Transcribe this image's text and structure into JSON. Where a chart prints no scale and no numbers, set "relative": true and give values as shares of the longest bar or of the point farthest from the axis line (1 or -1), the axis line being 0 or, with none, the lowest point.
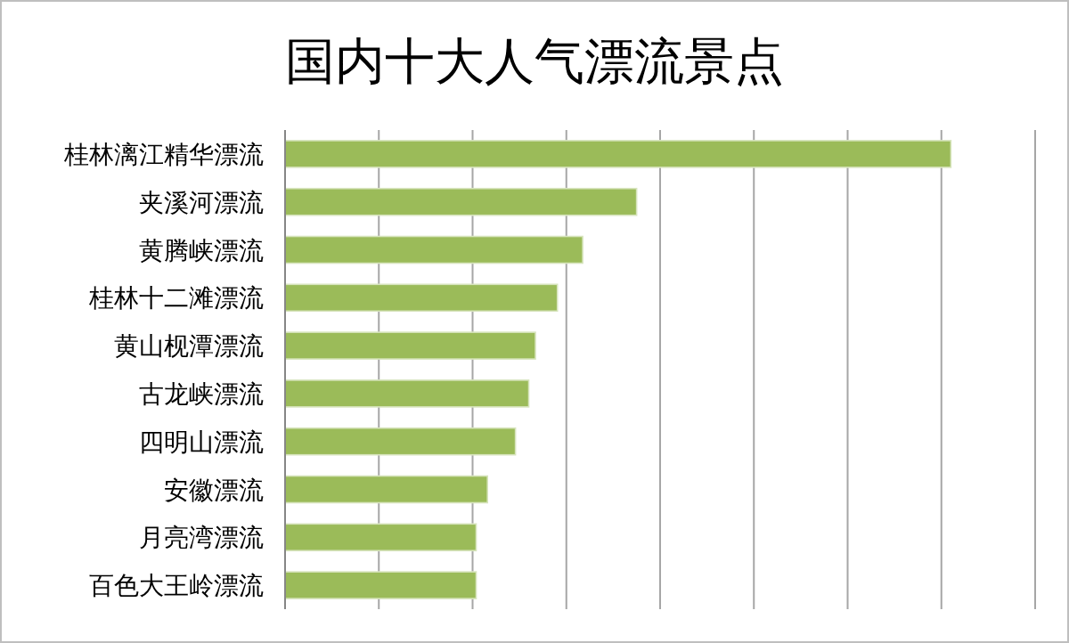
{
  "chart_data": {
    "type": "bar",
    "orientation": "horizontal",
    "relative": true,
    "title": "国内十大人气漂流景点",
    "categories": [
      "桂林漓江精华漂流",
      "夹溪河漂流",
      "黄腾峡漂流",
      "桂林十二滩漂流",
      "黄山枧潭漂流",
      "古龙峡漂流",
      "四明山漂流",
      "安徽漂流",
      "月亮湾漂流",
      "百色大王岭漂流"
    ],
    "values": [
      1,
      0.528,
      0.447,
      0.409,
      0.376,
      0.366,
      0.346,
      0.304,
      0.287,
      0.287
    ],
    "color": "#9bbb59",
    "grid": "x"
  }
}
